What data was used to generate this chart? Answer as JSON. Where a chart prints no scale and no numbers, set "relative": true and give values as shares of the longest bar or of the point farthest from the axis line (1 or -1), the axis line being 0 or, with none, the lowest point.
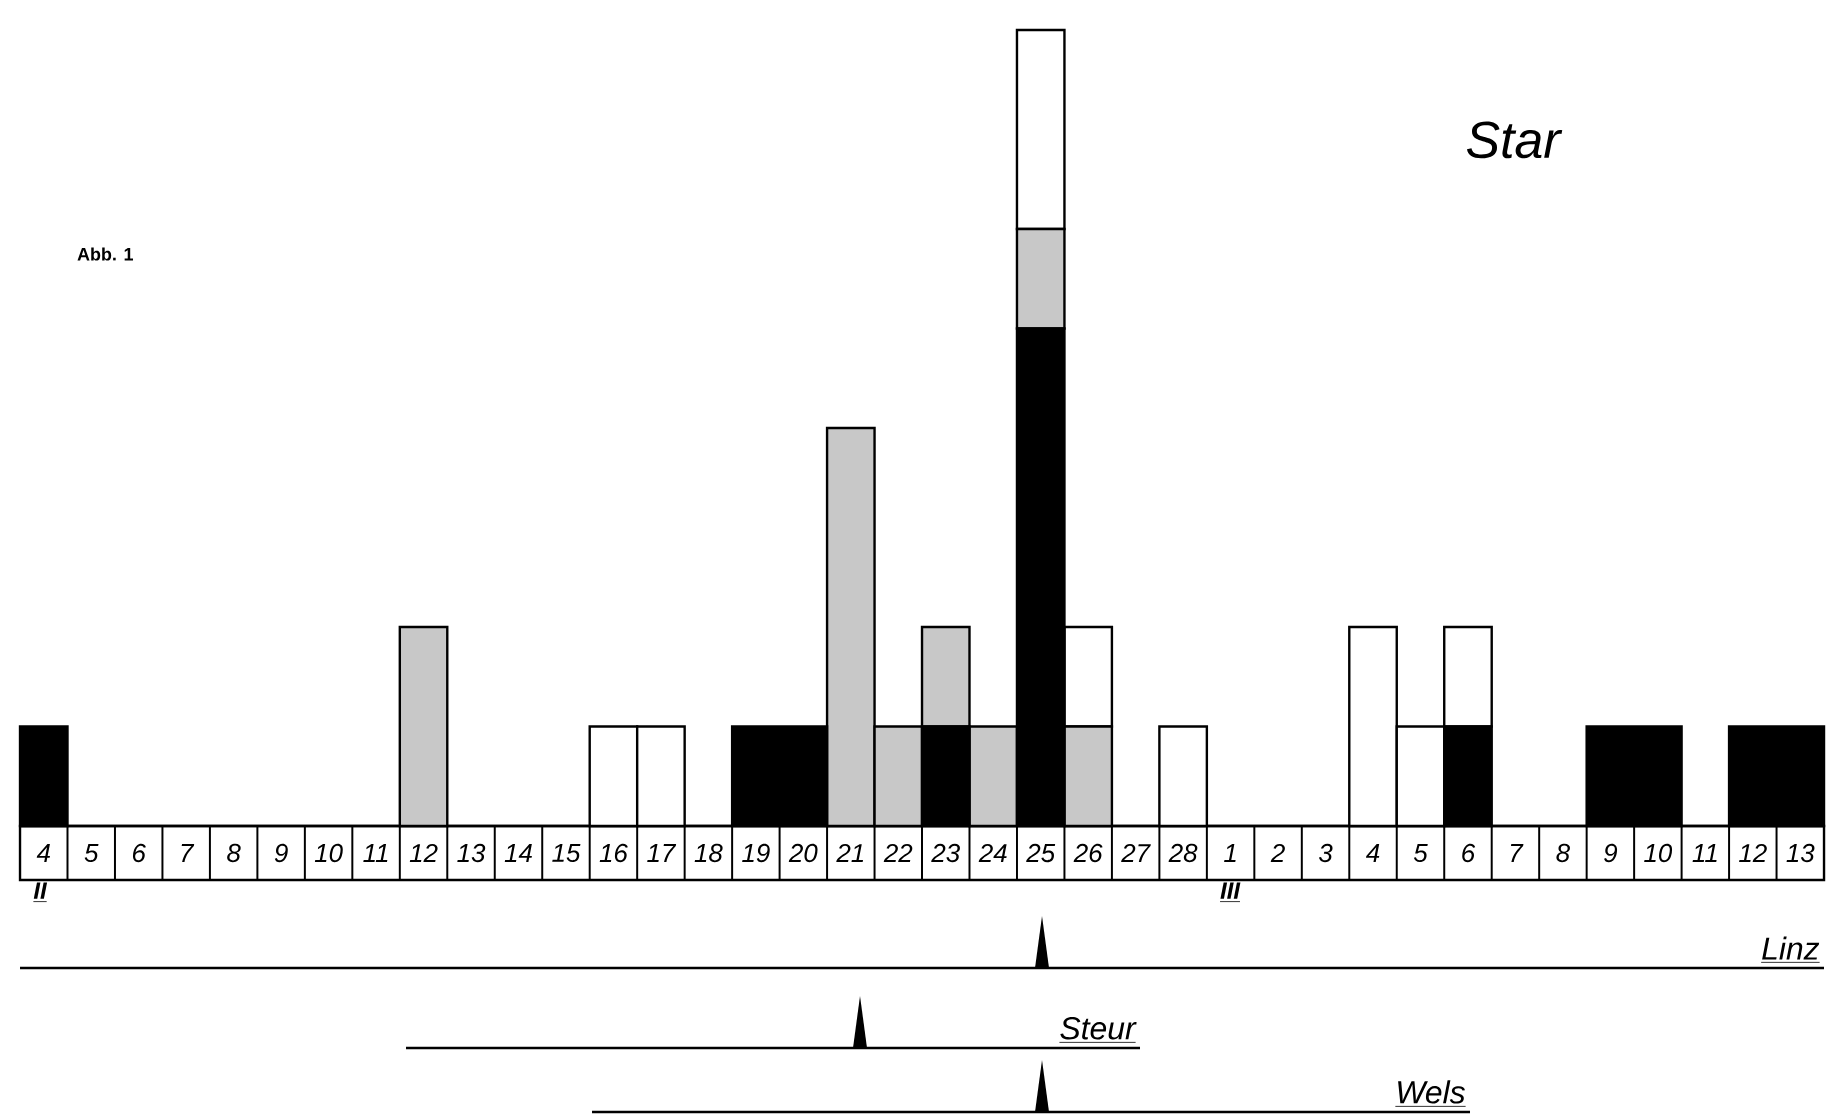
{
  "chart_data": {
    "type": "bar",
    "stacked": true,
    "relative": true,
    "title": "Star",
    "annotations": [
      "Abb. 1",
      "II",
      "III",
      "Linz",
      "Steur",
      "Wels"
    ],
    "categories": [
      "4",
      "5",
      "6",
      "7",
      "8",
      "9",
      "10",
      "11",
      "12",
      "13",
      "14",
      "15",
      "16",
      "17",
      "18",
      "19",
      "20",
      "21",
      "22",
      "23",
      "24",
      "25",
      "26",
      "27",
      "28",
      "1",
      "2",
      "3",
      "4",
      "5",
      "6",
      "7",
      "8",
      "9",
      "10",
      "11",
      "12",
      "13"
    ],
    "series": [
      {
        "color": "#000000",
        "values": [
          0.125,
          0,
          0,
          0,
          0,
          0,
          0,
          0,
          0,
          0,
          0,
          0,
          0,
          0,
          0,
          0.125,
          0.125,
          0,
          0,
          0.125,
          0,
          0.625,
          0,
          0,
          0,
          0,
          0,
          0,
          0,
          0,
          0.125,
          0,
          0,
          0.125,
          0.125,
          0,
          0.125,
          0.125
        ]
      },
      {
        "color": "#c8c8c8",
        "values": [
          0,
          0,
          0,
          0,
          0,
          0,
          0,
          0,
          0.25,
          0,
          0,
          0,
          0,
          0,
          0,
          0,
          0,
          0.5,
          0.125,
          0.125,
          0.125,
          0.125,
          0.125,
          0,
          0,
          0,
          0,
          0,
          0,
          0,
          0,
          0,
          0,
          0,
          0,
          0,
          0,
          0
        ]
      },
      {
        "color": "#ffffff",
        "values": [
          0,
          0,
          0,
          0,
          0,
          0,
          0,
          0,
          0,
          0,
          0,
          0,
          0.125,
          0.125,
          0,
          0,
          0,
          0,
          0,
          0,
          0,
          0.25,
          0.125,
          0,
          0.125,
          0,
          0,
          0,
          0.25,
          0.125,
          0.125,
          0,
          0,
          0,
          0,
          0,
          0,
          0
        ]
      }
    ]
  }
}
